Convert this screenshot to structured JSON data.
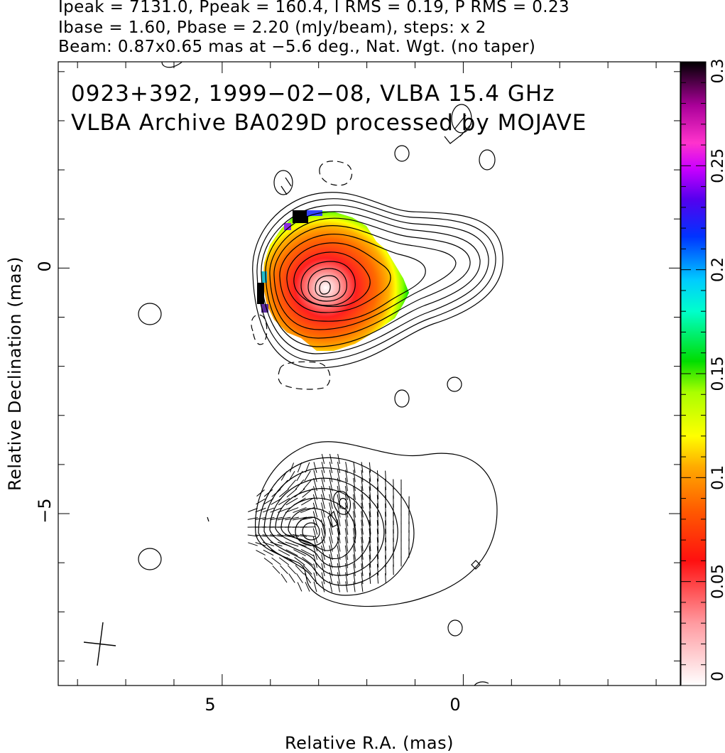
{
  "header": {
    "line1": "Ipeak = 7131.0, Ppeak = 160.4, I RMS = 0.19, P RMS = 0.23",
    "line2": "Ibase = 1.60, Pbase = 2.20 (mJy/beam), steps: x 2",
    "line3": "Beam: 0.87x0.65 mas at −5.6 deg., Nat. Wgt. (no taper)"
  },
  "chart_data": {
    "type": "heatmap",
    "title_line1": "0923+392, 1999−02−08, VLBA 15.4 GHz",
    "title_line2": "VLBA Archive BA029D processed by MOJAVE",
    "xlabel": "Relative R.A. (mas)",
    "ylabel": "Relative Declination (mas)",
    "xlim": [
      8.4,
      -4.5
    ],
    "ylim": [
      -8.5,
      4.2
    ],
    "x_ticks": [
      5,
      0
    ],
    "x_tick_labels": [
      "5",
      "0"
    ],
    "y_ticks": [
      0,
      -5
    ],
    "y_tick_labels": [
      "0",
      "−5"
    ],
    "colorbar": {
      "range": [
        0,
        0.3
      ],
      "ticks": [
        0,
        0.05,
        0.1,
        0.15,
        0.2,
        0.25,
        0.3
      ],
      "tick_labels": [
        "0",
        "0.05",
        "0.1",
        "0.15",
        "0.2",
        "0.25",
        "0.3"
      ]
    },
    "beam": {
      "major_mas": 0.87,
      "minor_mas": 0.65,
      "pa_deg": -5.6
    },
    "total_intensity_panel": {
      "peak": [
        2.7,
        -0.45
      ]
    },
    "polarized_intensity_panel": {
      "peak": [
        2.9,
        -5.4
      ]
    }
  }
}
